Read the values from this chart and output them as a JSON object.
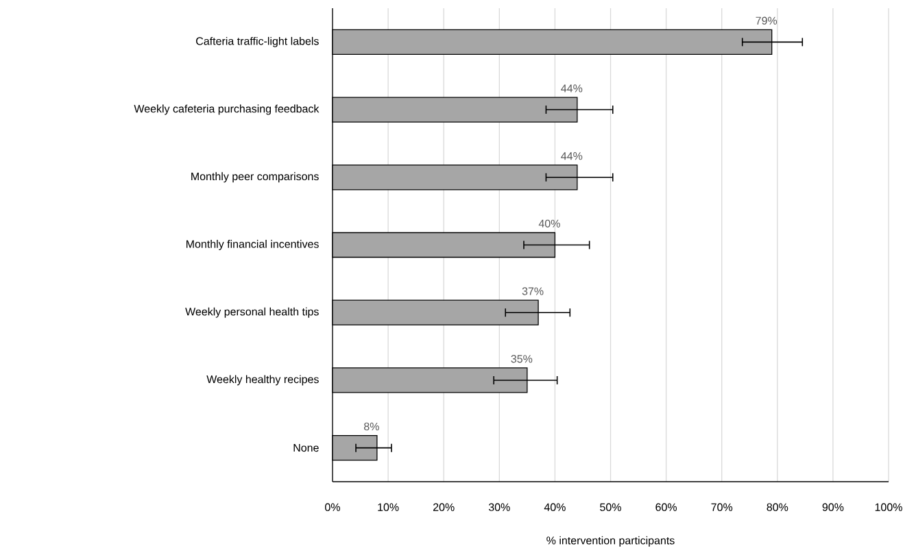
{
  "chart_data": {
    "type": "bar",
    "orientation": "horizontal",
    "xlabel": "% intervention participants",
    "categories": [
      "Cafteria traffic-light labels",
      "Weekly cafeteria purchasing feedback",
      "Monthly peer comparisons",
      "Monthly financial incentives",
      "Weekly personal health tips",
      "Weekly healthy recipes",
      "None"
    ],
    "values": [
      79,
      44,
      44,
      40,
      37,
      35,
      8
    ],
    "value_labels": [
      "79%",
      "44%",
      "44%",
      "40%",
      "37%",
      "35%",
      "8%"
    ],
    "errors": [
      [
        73.7,
        84.5
      ],
      [
        38.4,
        50.4
      ],
      [
        38.4,
        50.4
      ],
      [
        34.4,
        46.2
      ],
      [
        31.1,
        42.7
      ],
      [
        29.0,
        40.4
      ],
      [
        4.2,
        10.6
      ]
    ],
    "color": "#a6a6a6",
    "xlim": [
      0,
      100
    ],
    "xticks": [
      {
        "value": 0,
        "label": "0%"
      },
      {
        "value": 10,
        "label": "10%"
      },
      {
        "value": 20,
        "label": "20%"
      },
      {
        "value": 30,
        "label": "30%"
      },
      {
        "value": 40,
        "label": "40%"
      },
      {
        "value": 50,
        "label": "50%"
      },
      {
        "value": 60,
        "label": "60%"
      },
      {
        "value": 70,
        "label": "70%"
      },
      {
        "value": 80,
        "label": "80%"
      },
      {
        "value": 90,
        "label": "90%"
      },
      {
        "value": 100,
        "label": "100%"
      }
    ],
    "grid": "x"
  }
}
